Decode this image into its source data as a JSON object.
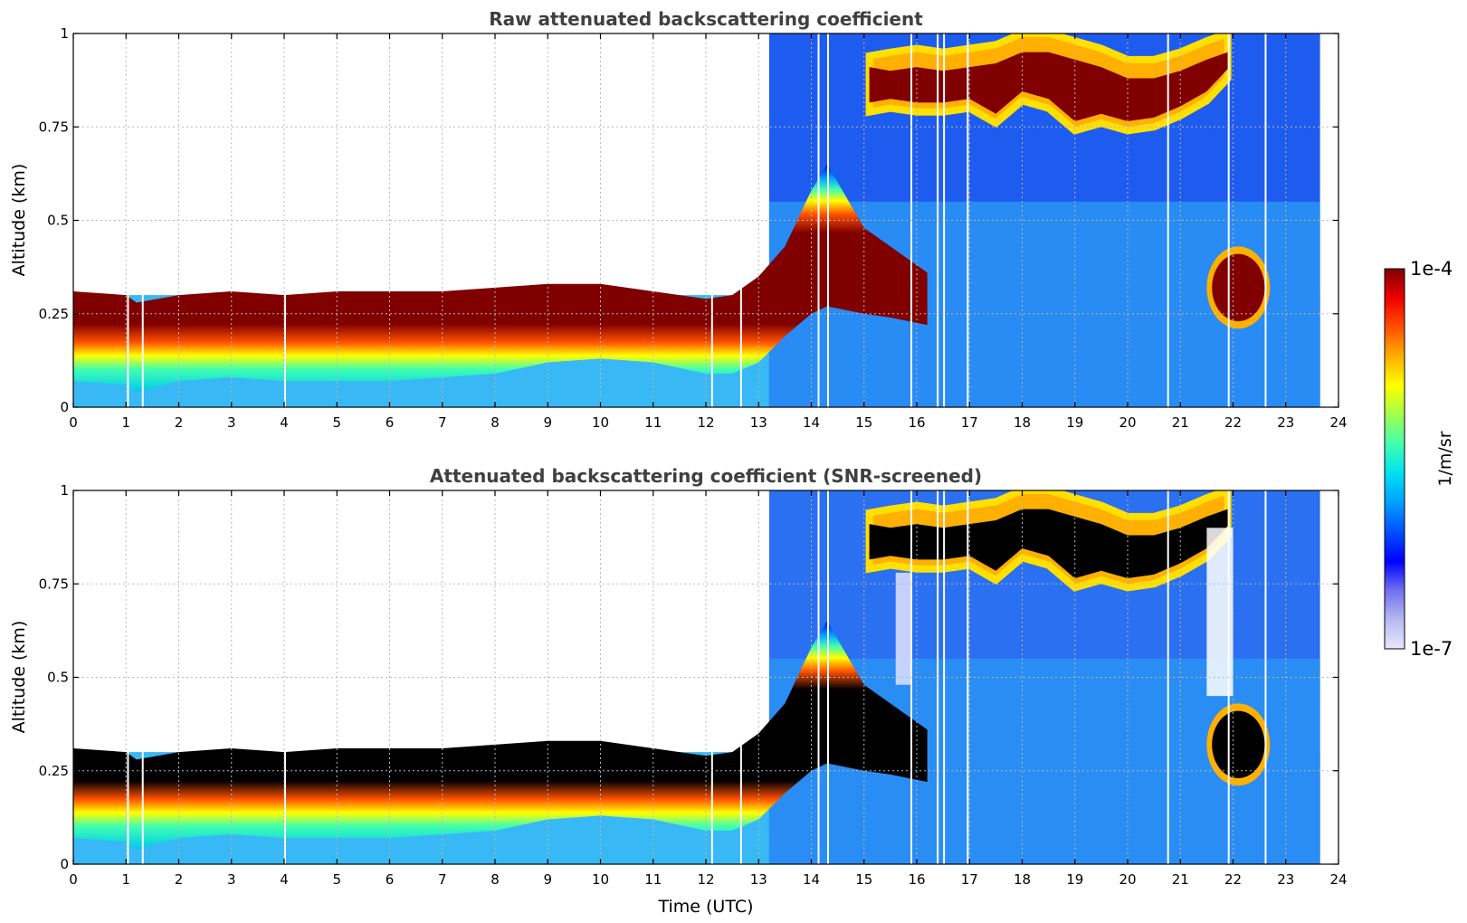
{
  "chart_data": [
    {
      "type": "heatmap",
      "title": "Raw attenuated backscattering coefficient",
      "xlabel": "",
      "ylabel": "Altitude (km)",
      "xlim": [
        0,
        24
      ],
      "ylim": [
        0,
        1
      ],
      "xticks": [
        0,
        1,
        2,
        3,
        4,
        5,
        6,
        7,
        8,
        9,
        10,
        11,
        12,
        13,
        14,
        15,
        16,
        17,
        18,
        19,
        20,
        21,
        22,
        23,
        24
      ],
      "yticks": [
        0,
        0.25,
        0.5,
        0.75,
        1
      ],
      "ytick_labels": [
        "0",
        "0.25",
        "0.5",
        "0.75",
        "1"
      ],
      "grid": true,
      "saturated_color": "#800000",
      "data_end_time": 23.65,
      "layers": {
        "boundary_layer_core": {
          "time": [
            0,
            1,
            1.2,
            2,
            3,
            4,
            5,
            6,
            7,
            8,
            9,
            10,
            11,
            12,
            12.5,
            13,
            13.5,
            14,
            14.3,
            15,
            15.5,
            16.2
          ],
          "bottom": [
            0.1,
            0.09,
            0.07,
            0.1,
            0.11,
            0.1,
            0.1,
            0.1,
            0.11,
            0.12,
            0.15,
            0.16,
            0.15,
            0.12,
            0.12,
            0.15,
            0.22,
            0.28,
            0.3,
            0.28,
            0.27,
            0.25
          ],
          "top": [
            0.28,
            0.27,
            0.25,
            0.27,
            0.28,
            0.27,
            0.28,
            0.28,
            0.28,
            0.29,
            0.3,
            0.3,
            0.28,
            0.26,
            0.27,
            0.32,
            0.4,
            0.55,
            0.62,
            0.45,
            0.4,
            0.33
          ]
        },
        "upper_cloud": {
          "time": [
            15.1,
            15.5,
            16,
            16.5,
            17,
            17.5,
            18,
            18.5,
            19,
            19.5,
            20,
            20.5,
            21,
            21.5,
            21.9
          ],
          "bottom": [
            0.79,
            0.8,
            0.79,
            0.79,
            0.8,
            0.76,
            0.82,
            0.8,
            0.74,
            0.76,
            0.74,
            0.75,
            0.78,
            0.82,
            0.88
          ],
          "top": [
            0.94,
            0.95,
            0.96,
            0.95,
            0.96,
            0.97,
            1.0,
            1.0,
            0.98,
            0.96,
            0.93,
            0.93,
            0.95,
            0.98,
            1.0
          ]
        },
        "blob": {
          "time_center": 22.1,
          "alt_center": 0.32,
          "time_halfwidth": 0.5,
          "alt_halfwidth": 0.09
        }
      },
      "gaps": [
        1.02,
        1.3,
        4.0,
        12.1,
        12.65,
        14.12,
        14.3,
        15.88,
        16.38,
        16.5,
        16.95,
        20.75,
        21.9,
        22.6
      ]
    },
    {
      "type": "heatmap",
      "title": "Attenuated backscattering coefficient (SNR-screened)",
      "xlabel": "Time (UTC)",
      "ylabel": "Altitude (km)",
      "xlim": [
        0,
        24
      ],
      "ylim": [
        0,
        1
      ],
      "xticks": [
        0,
        1,
        2,
        3,
        4,
        5,
        6,
        7,
        8,
        9,
        10,
        11,
        12,
        13,
        14,
        15,
        16,
        17,
        18,
        19,
        20,
        21,
        22,
        23,
        24
      ],
      "yticks": [
        0,
        0.25,
        0.5,
        0.75,
        1
      ],
      "ytick_labels": [
        "0",
        "0.25",
        "0.5",
        "0.75",
        "1"
      ],
      "grid": true,
      "saturated_color": "#000000",
      "data_end_time": 23.65,
      "gaps": [
        1.02,
        1.3,
        4.0,
        12.1,
        12.65,
        14.12,
        14.3,
        15.88,
        16.38,
        16.5,
        16.95,
        20.75,
        21.9,
        22.6
      ]
    }
  ],
  "colorbar": {
    "label": "1/m/sr",
    "max_label": "1e-4",
    "min_label": "1e-7",
    "min": 1e-07,
    "max": 0.0001,
    "scale": "log",
    "colors": [
      "#e8e8ff",
      "#b8b8f0",
      "#7070f0",
      "#0000ff",
      "#0050ff",
      "#00a0ff",
      "#00e0f0",
      "#40ffb0",
      "#a0ff50",
      "#ffff00",
      "#ffb000",
      "#ff5000",
      "#ee0000",
      "#800000"
    ]
  }
}
